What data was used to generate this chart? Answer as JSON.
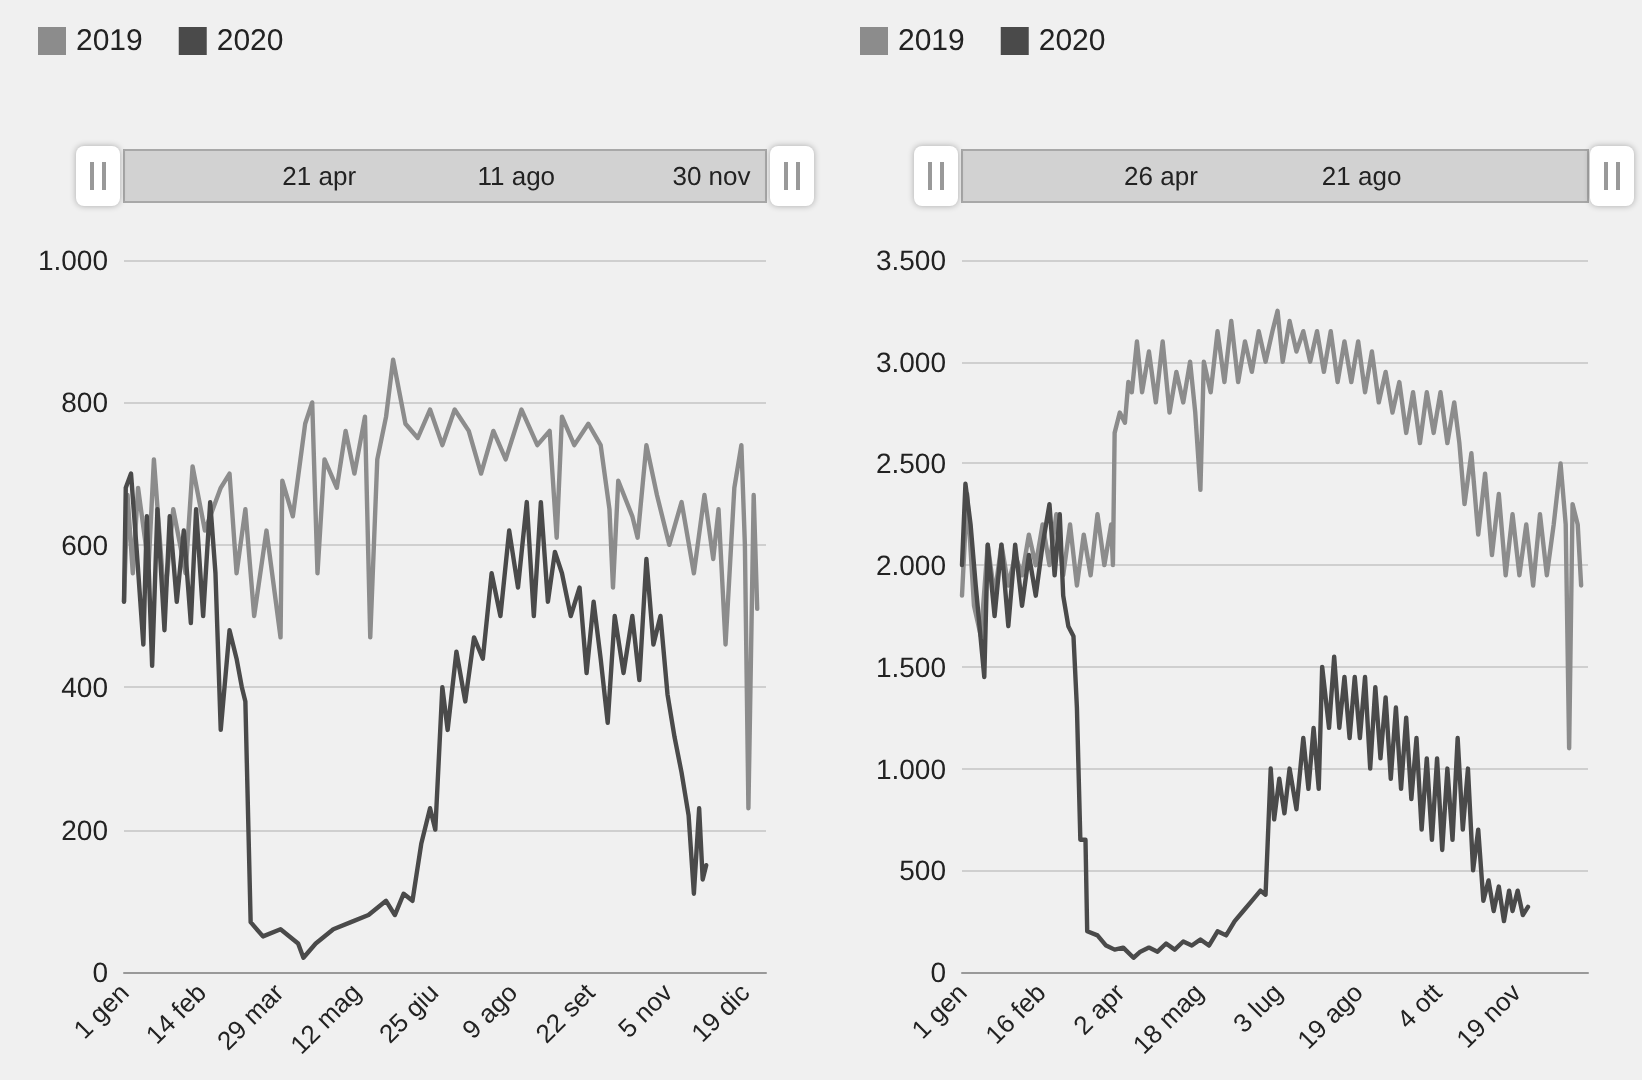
{
  "chart_data": [
    {
      "type": "line",
      "legend": "top left",
      "grid": "y",
      "xlim": [
        "--01-01",
        "--12-31"
      ],
      "ylim": [
        0,
        1000
      ],
      "xticks": [
        {
          "value": "--01-01",
          "label": "1 gen"
        },
        {
          "value": "--02-14",
          "label": "14 feb"
        },
        {
          "value": "--03-29",
          "label": "29 mar"
        },
        {
          "value": "--05-12",
          "label": "12 mag"
        },
        {
          "value": "--06-25",
          "label": "25 giu"
        },
        {
          "value": "--08-09",
          "label": "9 ago"
        },
        {
          "value": "--09-22",
          "label": "22 set"
        },
        {
          "value": "--11-05",
          "label": "5 nov"
        },
        {
          "value": "--12-19",
          "label": "19 dic"
        }
      ],
      "yticks": [
        0,
        200,
        400,
        600,
        800,
        {
          "value": 1000,
          "label": "1.000"
        }
      ],
      "x2lim": [
        "--01-01",
        "--12-31"
      ],
      "x2ticks": [
        {
          "value": "--04-21",
          "label": "21 apr"
        },
        {
          "value": "--08-11",
          "label": "11 ago"
        },
        {
          "value": "--11-30",
          "label": "30 nov"
        }
      ],
      "series": [
        {
          "name": "2019",
          "color": "#8c8c8c",
          "x": [
            "--01-01",
            "--01-03",
            "--01-06",
            "--01-09",
            "--01-15",
            "--01-18",
            "--01-24",
            "--01-29",
            "--02-05",
            "--02-09",
            "--02-16",
            "--02-25",
            "--03-01",
            "--03-05",
            "--03-10",
            "--03-15",
            "--03-22",
            "--03-30",
            "--03-31",
            "--04-06",
            "--04-13",
            "--04-17",
            "--04-20",
            "--04-24",
            "--05-01",
            "--05-06",
            "--05-11",
            "--05-17",
            "--05-20",
            "--05-24",
            "--05-29",
            "--06-02",
            "--06-09",
            "--06-16",
            "--06-23",
            "--06-30",
            "--07-07",
            "--07-15",
            "--07-22",
            "--07-29",
            "--08-05",
            "--08-14",
            "--08-23",
            "--08-30",
            "--09-03",
            "--09-06",
            "--09-13",
            "--09-21",
            "--09-28",
            "--10-03",
            "--10-05",
            "--10-08",
            "--10-16",
            "--10-19",
            "--10-24",
            "--10-30",
            "--11-06",
            "--11-13",
            "--11-20",
            "--11-26",
            "--12-01",
            "--12-04",
            "--12-08",
            "--12-13",
            "--12-17",
            "--12-19",
            "--12-21",
            "--12-24",
            "--12-26"
          ],
          "values": [
            520,
            670,
            560,
            680,
            570,
            720,
            520,
            650,
            560,
            710,
            620,
            680,
            700,
            560,
            650,
            500,
            620,
            470,
            690,
            640,
            770,
            800,
            560,
            720,
            680,
            760,
            700,
            780,
            470,
            720,
            780,
            860,
            770,
            750,
            790,
            740,
            790,
            760,
            700,
            760,
            720,
            790,
            740,
            760,
            610,
            780,
            740,
            770,
            740,
            650,
            540,
            690,
            640,
            610,
            740,
            670,
            600,
            660,
            560,
            670,
            580,
            650,
            460,
            680,
            740,
            600,
            230,
            670,
            510
          ]
        },
        {
          "name": "2020",
          "color": "#4a4a4a",
          "x": [
            "--01-01",
            "--01-02",
            "--01-05",
            "--01-08",
            "--01-12",
            "--01-14",
            "--01-17",
            "--01-20",
            "--01-24",
            "--01-27",
            "--01-31",
            "--02-04",
            "--02-08",
            "--02-11",
            "--02-15",
            "--02-19",
            "--02-22",
            "--02-25",
            "--03-01",
            "--03-05",
            "--03-08",
            "--03-10",
            "--03-13",
            "--03-20",
            "--03-30",
            "--04-09",
            "--04-12",
            "--04-19",
            "--04-29",
            "--05-09",
            "--05-19",
            "--05-29",
            "--06-03",
            "--06-08",
            "--06-13",
            "--06-18",
            "--06-23",
            "--06-26",
            "--06-30",
            "--07-03",
            "--07-08",
            "--07-13",
            "--07-18",
            "--07-23",
            "--07-28",
            "--08-02",
            "--08-07",
            "--08-12",
            "--08-17",
            "--08-21",
            "--08-25",
            "--08-29",
            "--09-02",
            "--09-06",
            "--09-11",
            "--09-16",
            "--09-20",
            "--09-24",
            "--09-28",
            "--10-02",
            "--10-06",
            "--10-11",
            "--10-16",
            "--10-20",
            "--10-24",
            "--10-28",
            "--11-01",
            "--11-05",
            "--11-09",
            "--11-13",
            "--11-17",
            "--11-20",
            "--11-23",
            "--11-25",
            "--11-27"
          ],
          "values": [
            520,
            680,
            700,
            600,
            460,
            640,
            430,
            650,
            480,
            640,
            520,
            620,
            490,
            650,
            500,
            660,
            560,
            340,
            480,
            440,
            400,
            380,
            70,
            50,
            60,
            40,
            20,
            40,
            60,
            70,
            80,
            100,
            80,
            110,
            100,
            180,
            230,
            200,
            400,
            340,
            450,
            380,
            470,
            440,
            560,
            500,
            620,
            540,
            660,
            500,
            660,
            520,
            590,
            560,
            500,
            540,
            420,
            520,
            440,
            350,
            500,
            420,
            500,
            410,
            580,
            460,
            500,
            390,
            330,
            280,
            220,
            110,
            230,
            130,
            150
          ]
        }
      ]
    },
    {
      "type": "line",
      "legend": "top left",
      "grid": "y",
      "xlim": [
        "--01-01",
        "--12-31"
      ],
      "ylim": [
        0,
        3500
      ],
      "xticks": [
        {
          "value": "--01-01",
          "label": "1 gen"
        },
        {
          "value": "--02-16",
          "label": "16 feb"
        },
        {
          "value": "--04-02",
          "label": "2 apr"
        },
        {
          "value": "--05-18",
          "label": "18 mag"
        },
        {
          "value": "--07-03",
          "label": "3 lug"
        },
        {
          "value": "--08-19",
          "label": "19 ago"
        },
        {
          "value": "--10-04",
          "label": "4 ott"
        },
        {
          "value": "--11-19",
          "label": "19 nov"
        }
      ],
      "yticks": [
        0,
        500,
        {
          "value": 1000,
          "label": "1.000"
        },
        {
          "value": 1500,
          "label": "1.500"
        },
        {
          "value": 2000,
          "label": "2.000"
        },
        {
          "value": 2500,
          "label": "2.500"
        },
        {
          "value": 3000,
          "label": "3.000"
        },
        {
          "value": 3500,
          "label": "3.500"
        }
      ],
      "x2lim": [
        "--01-01",
        "--12-31"
      ],
      "x2ticks": [
        {
          "value": "--04-26",
          "label": "26 apr"
        },
        {
          "value": "--08-21",
          "label": "21 ago"
        }
      ],
      "series": [
        {
          "name": "2019",
          "color": "#8c8c8c",
          "x": [
            "--01-01",
            "--01-04",
            "--01-08",
            "--01-12",
            "--01-16",
            "--01-20",
            "--01-24",
            "--01-28",
            "--02-01",
            "--02-05",
            "--02-09",
            "--02-13",
            "--02-17",
            "--02-21",
            "--02-25",
            "--02-29",
            "--03-04",
            "--03-08",
            "--03-12",
            "--03-16",
            "--03-20",
            "--03-24",
            "--03-28",
            "--03-29",
            "--03-30",
            "--04-02",
            "--04-05",
            "--04-07",
            "--04-09",
            "--04-12",
            "--04-15",
            "--04-19",
            "--04-23",
            "--04-27",
            "--05-01",
            "--05-05",
            "--05-09",
            "--05-13",
            "--05-16",
            "--05-19",
            "--05-21",
            "--05-25",
            "--05-29",
            "--06-02",
            "--06-06",
            "--06-10",
            "--06-14",
            "--06-18",
            "--06-22",
            "--06-26",
            "--06-30",
            "--07-03",
            "--07-06",
            "--07-10",
            "--07-14",
            "--07-18",
            "--07-22",
            "--07-26",
            "--07-30",
            "--08-03",
            "--08-07",
            "--08-11",
            "--08-15",
            "--08-19",
            "--08-23",
            "--08-27",
            "--08-31",
            "--09-04",
            "--09-08",
            "--09-12",
            "--09-16",
            "--09-20",
            "--09-24",
            "--09-28",
            "--10-02",
            "--10-06",
            "--10-10",
            "--10-14",
            "--10-17",
            "--10-20",
            "--10-24",
            "--10-28",
            "--11-01",
            "--11-05",
            "--11-09",
            "--11-13",
            "--11-17",
            "--11-21",
            "--11-25",
            "--11-29",
            "--12-03",
            "--12-07",
            "--12-11",
            "--12-15",
            "--12-18",
            "--12-20",
            "--12-22",
            "--12-25",
            "--12-27"
          ],
          "values": [
            1850,
            2350,
            1800,
            1650,
            2100,
            1850,
            2100,
            1900,
            2050,
            1950,
            2150,
            2000,
            2200,
            2000,
            2250,
            1950,
            2200,
            1900,
            2150,
            1950,
            2250,
            2000,
            2200,
            2000,
            2650,
            2750,
            2700,
            2900,
            2850,
            3100,
            2850,
            3050,
            2800,
            3100,
            2750,
            2950,
            2800,
            3000,
            2750,
            2370,
            3000,
            2850,
            3150,
            2900,
            3200,
            2900,
            3100,
            2950,
            3150,
            3000,
            3150,
            3250,
            3000,
            3200,
            3050,
            3150,
            3000,
            3150,
            2950,
            3150,
            2900,
            3100,
            2900,
            3100,
            2850,
            3050,
            2800,
            2950,
            2750,
            2900,
            2650,
            2850,
            2600,
            2850,
            2650,
            2850,
            2600,
            2800,
            2600,
            2300,
            2550,
            2150,
            2450,
            2050,
            2350,
            1950,
            2250,
            1950,
            2200,
            1900,
            2250,
            1950,
            2200,
            2500,
            2200,
            1100,
            2300,
            2200,
            1900
          ]
        },
        {
          "name": "2020",
          "color": "#4a4a4a",
          "x": [
            "--01-01",
            "--01-03",
            "--01-06",
            "--01-09",
            "--01-14",
            "--01-16",
            "--01-20",
            "--01-24",
            "--01-28",
            "--02-01",
            "--02-05",
            "--02-09",
            "--02-13",
            "--02-17",
            "--02-21",
            "--02-24",
            "--02-27",
            "--02-29",
            "--03-03",
            "--03-06",
            "--03-08",
            "--03-10",
            "--03-13",
            "--03-14",
            "--03-20",
            "--03-25",
            "--03-30",
            "--04-04",
            "--04-10",
            "--04-14",
            "--04-19",
            "--04-24",
            "--04-29",
            "--05-04",
            "--05-09",
            "--05-14",
            "--05-19",
            "--05-24",
            "--05-29",
            "--06-03",
            "--06-08",
            "--06-13",
            "--06-18",
            "--06-23",
            "--06-26",
            "--06-29",
            "--07-01",
            "--07-04",
            "--07-07",
            "--07-10",
            "--07-14",
            "--07-18",
            "--07-21",
            "--07-24",
            "--07-27",
            "--07-29",
            "--08-02",
            "--08-05",
            "--08-08",
            "--08-11",
            "--08-14",
            "--08-17",
            "--08-20",
            "--08-23",
            "--08-26",
            "--08-29",
            "--09-01",
            "--09-04",
            "--09-07",
            "--09-10",
            "--09-13",
            "--09-16",
            "--09-19",
            "--09-22",
            "--09-25",
            "--09-28",
            "--10-01",
            "--10-04",
            "--10-07",
            "--10-10",
            "--10-13",
            "--10-16",
            "--10-19",
            "--10-22",
            "--10-25",
            "--10-28",
            "--10-31",
            "--11-03",
            "--11-06",
            "--11-09",
            "--11-12",
            "--11-15",
            "--11-17",
            "--11-20",
            "--11-23",
            "--11-26"
          ],
          "values": [
            2000,
            2400,
            2200,
            1900,
            1450,
            2100,
            1750,
            2100,
            1700,
            2100,
            1800,
            2050,
            1850,
            2100,
            2300,
            1950,
            2250,
            1850,
            1700,
            1650,
            1300,
            650,
            650,
            200,
            180,
            130,
            110,
            120,
            70,
            100,
            120,
            100,
            140,
            110,
            150,
            130,
            160,
            130,
            200,
            180,
            250,
            300,
            350,
            400,
            380,
            1000,
            750,
            950,
            780,
            1000,
            800,
            1150,
            900,
            1200,
            900,
            1500,
            1200,
            1550,
            1200,
            1450,
            1150,
            1450,
            1150,
            1450,
            1000,
            1400,
            1050,
            1350,
            950,
            1300,
            900,
            1250,
            850,
            1150,
            700,
            1050,
            650,
            1050,
            600,
            1000,
            650,
            1150,
            700,
            1000,
            500,
            700,
            350,
            450,
            300,
            420,
            250,
            400,
            300,
            400,
            280,
            320
          ]
        }
      ]
    }
  ]
}
